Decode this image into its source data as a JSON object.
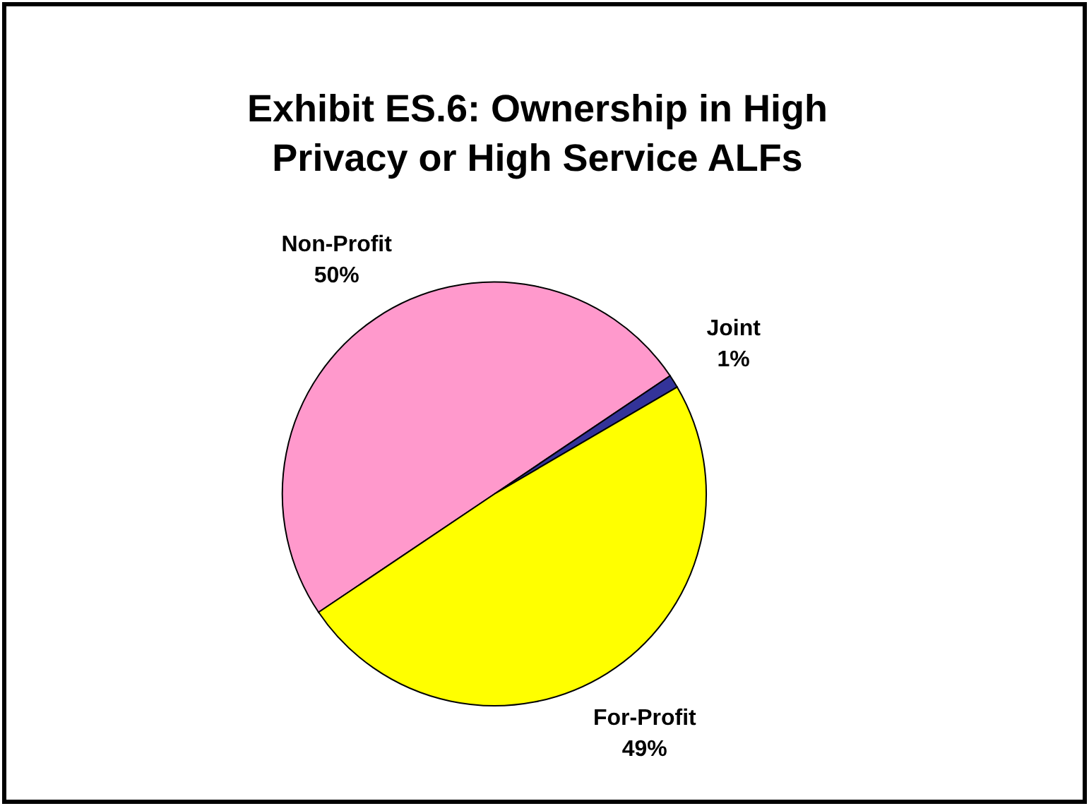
{
  "chart_data": {
    "type": "pie",
    "title": "Exhibit ES.6: Ownership in High Privacy or High Service ALFs",
    "categories": [
      "Non-Profit",
      "Joint",
      "For-Profit"
    ],
    "values": [
      50,
      1,
      49
    ],
    "value_labels": [
      "50%",
      "1%",
      "49%"
    ],
    "colors": [
      "#ff99cc",
      "#333399",
      "#ffff00"
    ]
  }
}
